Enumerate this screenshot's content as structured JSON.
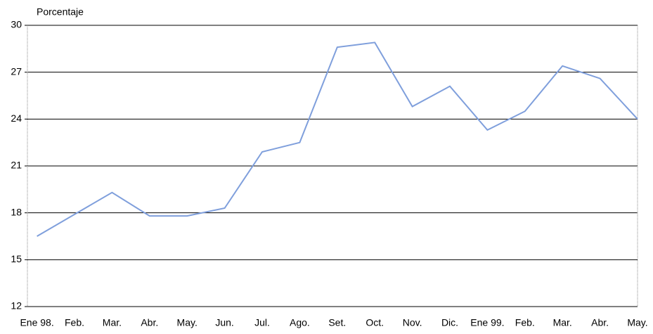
{
  "chart_data": {
    "type": "line",
    "y_label": "Porcentaje",
    "categories": [
      "Ene 98.",
      "Feb.",
      "Mar.",
      "Abr.",
      "May.",
      "Jun.",
      "Jul.",
      "Ago.",
      "Set.",
      "Oct.",
      "Nov.",
      "Dic.",
      "Ene 99.",
      "Feb.",
      "Mar.",
      "Abr.",
      "May."
    ],
    "values": [
      16.5,
      17.9,
      19.3,
      17.8,
      17.8,
      18.3,
      21.9,
      22.5,
      28.6,
      28.9,
      24.8,
      26.1,
      23.3,
      24.5,
      27.4,
      26.6,
      24.0
    ],
    "color": "#7f9fdc",
    "ylim": [
      12,
      30
    ],
    "yticks": [
      12,
      15,
      18,
      21,
      24,
      27,
      30
    ],
    "grid": true
  }
}
